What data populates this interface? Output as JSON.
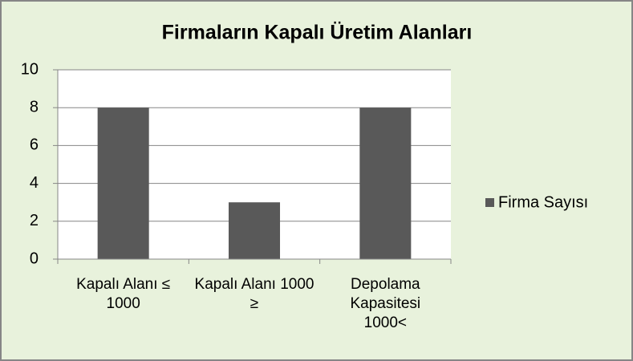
{
  "chart_data": {
    "type": "bar",
    "title": "Firmaların Kapalı Üretim Alanları",
    "categories": [
      "Kapalı Alanı ≤ 1000",
      "Kapalı Alanı 1000 ≥",
      "Depolama Kapasitesi 1000<"
    ],
    "series": [
      {
        "name": "Firma Sayısı",
        "color": "#595959",
        "values": [
          8,
          3,
          8
        ]
      }
    ],
    "ylim": [
      0,
      10
    ],
    "yticks": [
      0,
      2,
      4,
      6,
      8,
      10
    ],
    "grid": true,
    "legend": "right"
  }
}
